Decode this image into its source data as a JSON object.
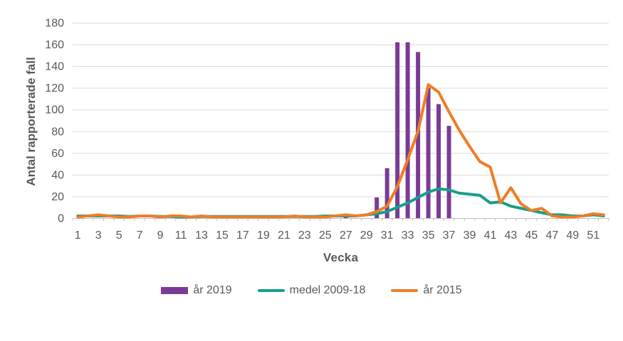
{
  "chart_data": {
    "type": "combo-bar-line",
    "title": "",
    "xlabel": "Vecka",
    "ylabel": "Antal rapporterade fall",
    "ylim": [
      0,
      180
    ],
    "y_ticks": [
      0,
      20,
      40,
      60,
      80,
      100,
      120,
      140,
      160,
      180
    ],
    "x_tick_labels": [
      1,
      3,
      5,
      7,
      9,
      11,
      13,
      15,
      17,
      19,
      21,
      23,
      25,
      27,
      29,
      31,
      33,
      35,
      37,
      39,
      41,
      43,
      45,
      47,
      49,
      51
    ],
    "weeks": 52,
    "grid": "horizontal-only",
    "legend_position": "bottom-center",
    "series": [
      {
        "name": "år 2019",
        "type": "bar",
        "color": "#7A3B96",
        "values": [
          0,
          0,
          0,
          0,
          0,
          0,
          0,
          0,
          0,
          0,
          0,
          0,
          0,
          0,
          0,
          0,
          0,
          0,
          0,
          0,
          0,
          0,
          0,
          0,
          0,
          0,
          4,
          0,
          0,
          19,
          46,
          162,
          162,
          153,
          120,
          105,
          85,
          0,
          0,
          0,
          0,
          0,
          0,
          0,
          0,
          0,
          0,
          0,
          0,
          0,
          0,
          0
        ]
      },
      {
        "name": "medel 2009-18",
        "type": "line",
        "color": "#169E8C",
        "values": [
          2,
          2,
          2,
          2,
          2,
          1.5,
          2,
          2,
          1.5,
          1.5,
          1,
          1,
          1.5,
          1.5,
          1.5,
          1.5,
          1.5,
          1.5,
          1.5,
          1.5,
          1.5,
          1.5,
          1.5,
          1.5,
          2,
          2,
          2,
          2,
          3,
          4,
          6,
          10,
          14,
          19,
          24,
          27,
          26,
          23,
          22,
          21,
          14,
          15,
          11,
          9,
          7,
          5,
          3,
          3,
          2,
          2,
          3,
          2
        ]
      },
      {
        "name": "år 2015",
        "type": "line",
        "color": "#F07D26",
        "values": [
          1,
          2,
          3,
          2,
          1,
          1,
          2,
          2,
          1,
          2,
          2,
          1,
          2,
          1,
          1,
          1,
          1,
          1,
          1,
          1,
          1,
          2,
          1,
          1,
          1,
          2,
          3,
          2,
          3,
          6,
          11,
          29,
          54,
          80,
          123,
          116,
          98,
          81,
          66,
          52,
          47,
          14,
          28,
          13,
          7,
          9,
          2,
          1,
          1,
          2,
          4,
          3
        ]
      }
    ],
    "colors": {
      "gridline": "#D9D9D9",
      "axis_line": "#BFBFBF",
      "tick_text": "#595959"
    }
  }
}
